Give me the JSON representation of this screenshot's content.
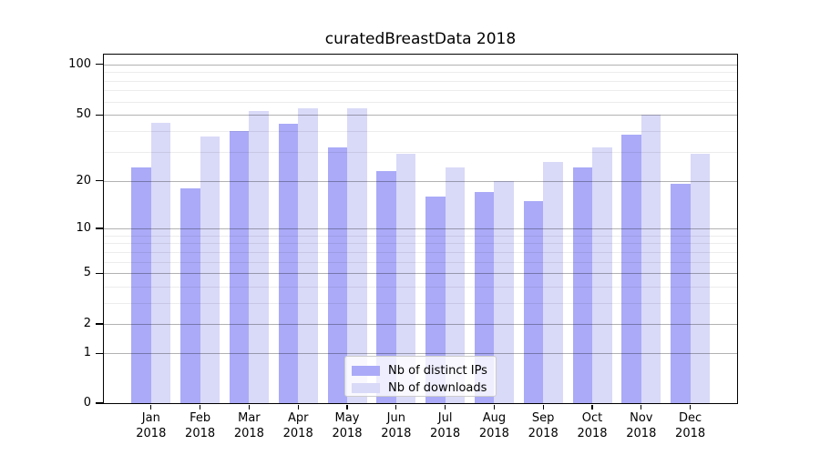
{
  "chart_data": {
    "type": "bar",
    "title": "curatedBreastData 2018",
    "year_label": "2018",
    "categories": [
      "Jan",
      "Feb",
      "Mar",
      "Apr",
      "May",
      "Jun",
      "Jul",
      "Aug",
      "Sep",
      "Oct",
      "Nov",
      "Dec"
    ],
    "series": [
      {
        "name": "Nb of distinct IPs",
        "color": "#aaaaf8",
        "values": [
          24,
          18,
          40,
          44,
          32,
          23,
          16,
          17,
          15,
          24,
          38,
          19
        ]
      },
      {
        "name": "Nb of downloads",
        "color": "#d9d9f8",
        "values": [
          45,
          37,
          53,
          55,
          55,
          29,
          24,
          20,
          26,
          32,
          50,
          29
        ]
      }
    ],
    "xlabel": "",
    "ylabel": "",
    "yscale": "log1p",
    "ylim": [
      0,
      115
    ],
    "yticks": [
      0,
      1,
      2,
      5,
      10,
      20,
      50,
      100
    ],
    "yticks_minor": [
      3,
      4,
      6,
      7,
      8,
      9,
      30,
      40,
      60,
      70,
      80,
      90
    ],
    "grid": true,
    "legend": {
      "position": "lower center",
      "entries": [
        "Nb of distinct IPs",
        "Nb of downloads"
      ]
    },
    "colors": {
      "distinct_ips_bar": "#aaaaf8",
      "downloads_bar": "#d9d9f8",
      "major_grid": "#b3b3b3",
      "minor_grid": "#ececec",
      "spine": "#000000",
      "background": "#ffffff",
      "text": "#000000"
    }
  }
}
